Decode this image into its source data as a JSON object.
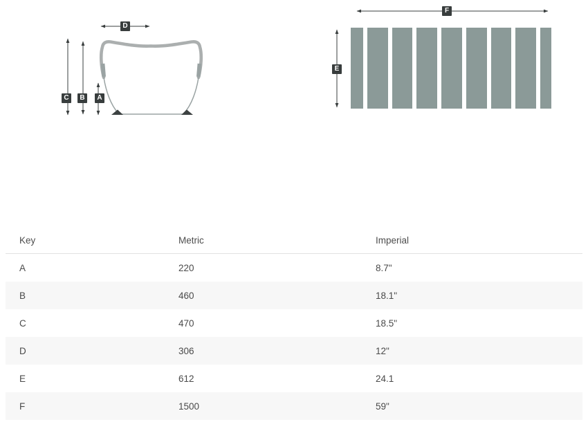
{
  "diagram": {
    "front_view": {
      "labels": {
        "a": "A",
        "b": "B",
        "c": "C",
        "d": "D"
      }
    },
    "top_view": {
      "labels": {
        "e": "E",
        "f": "F"
      },
      "slat_count": 9
    },
    "colors": {
      "slat": "#8b9a98",
      "arrow": "#3a3f3f",
      "badge_bg": "#383d3d",
      "badge_text": "#ffffff",
      "outline": "#abafaf",
      "outline_thin": "#9aa3a3",
      "feet": "#3d4242",
      "stripe": "#f7f7f7",
      "text": "#4a4a4a",
      "border": "#e2e2e2"
    }
  },
  "table": {
    "columns": [
      "Key",
      "Metric",
      "Imperial"
    ],
    "rows": [
      {
        "key": "A",
        "metric": "220",
        "imperial": "8.7\""
      },
      {
        "key": "B",
        "metric": "460",
        "imperial": "18.1\""
      },
      {
        "key": "C",
        "metric": "470",
        "imperial": "18.5\""
      },
      {
        "key": "D",
        "metric": "306",
        "imperial": "12\""
      },
      {
        "key": "E",
        "metric": "612",
        "imperial": "24.1"
      },
      {
        "key": "F",
        "metric": "1500",
        "imperial": "59\""
      }
    ]
  }
}
